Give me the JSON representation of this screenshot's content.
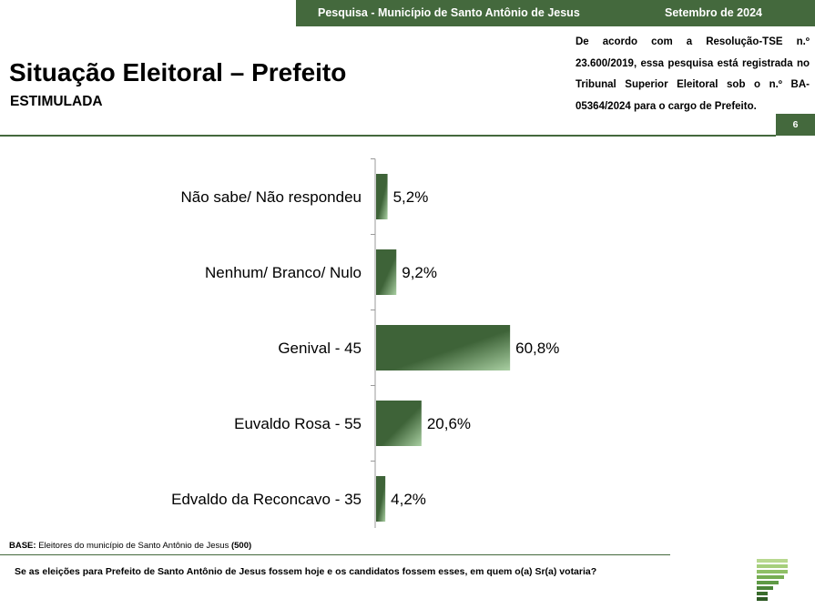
{
  "header": {
    "survey_label": "Pesquisa - Município de Santo Antônio de Jesus",
    "date_label": "Setembro de 2024",
    "title": "Situação Eleitoral – Prefeito",
    "subtitle": "ESTIMULADA",
    "registration_note": "De acordo com a Resolução-TSE n.º 23.600/2019, essa pesquisa está registrada no Tribunal Superior Eleitoral sob o n.º BA-05364/2024 para o cargo de Prefeito.",
    "page_number": "6"
  },
  "colors": {
    "accent": "#44693d",
    "bar_dark": "#3e6338",
    "bar_light": "#a9cfa2"
  },
  "chart_data": {
    "type": "bar",
    "orientation": "horizontal",
    "categories": [
      "Não sabe/ Não respondeu",
      "Nenhum/ Branco/ Nulo",
      "Genival - 45",
      "Euvaldo Rosa - 55",
      "Edvaldo da Reconcavo - 35"
    ],
    "values": [
      5.2,
      9.2,
      60.8,
      20.6,
      4.2
    ],
    "value_labels": [
      "5,2%",
      "9,2%",
      "60,8%",
      "20,6%",
      "4,2%"
    ],
    "title": "",
    "xlabel": "",
    "ylabel": "",
    "grid": false
  },
  "footer": {
    "base_label": "BASE:",
    "base_text": " Eleitores do município de Santo Antônio de Jesus ",
    "base_count": "(500)",
    "question": "Se as eleições para Prefeito de Santo Antônio de Jesus fossem hoje e os candidatos fossem esses, em quem o(a) Sr(a) votaria?"
  }
}
